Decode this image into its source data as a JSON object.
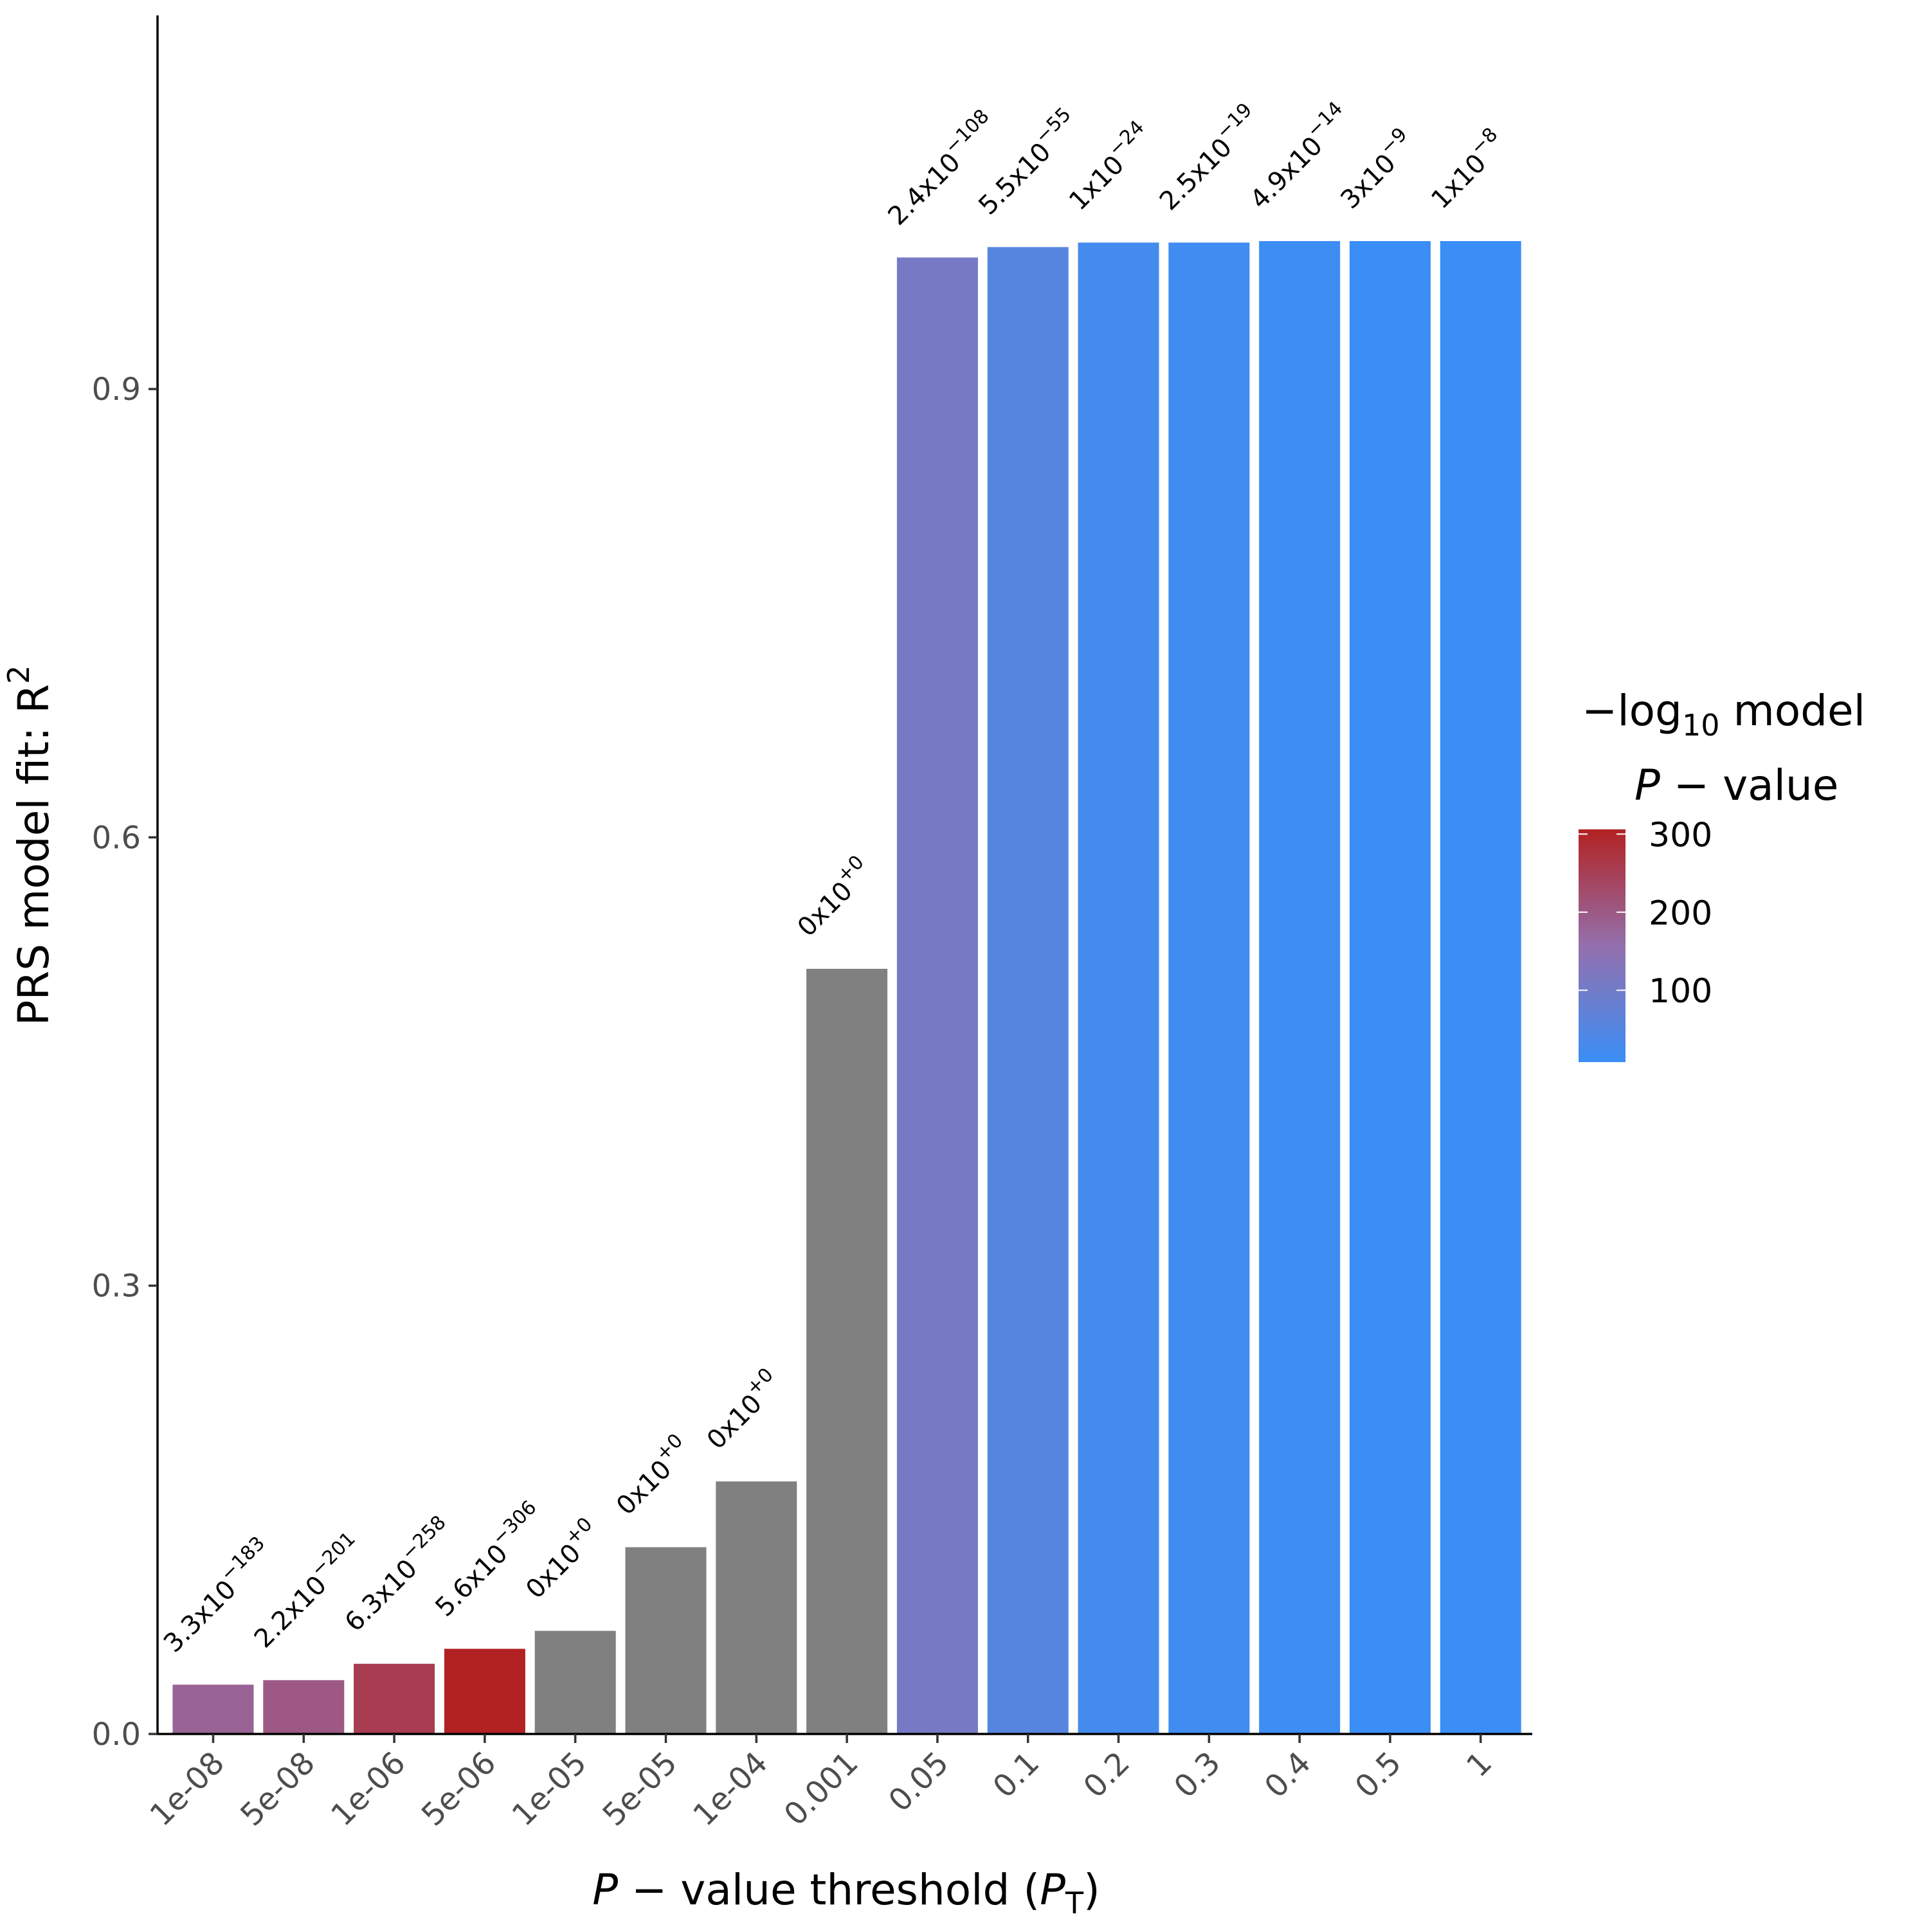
{
  "chart_data": {
    "type": "bar",
    "categories": [
      "1e-08",
      "5e-08",
      "1e-06",
      "5e-06",
      "1e-05",
      "5e-05",
      "1e-04",
      "0.001",
      "0.05",
      "0.1",
      "0.2",
      "0.3",
      "0.4",
      "0.5",
      "1"
    ],
    "values": [
      0.033,
      0.036,
      0.047,
      0.057,
      0.069,
      0.125,
      0.169,
      0.512,
      0.988,
      0.995,
      0.998,
      0.998,
      0.999,
      0.999,
      0.999
    ],
    "neg_log10_p": [
      182.5,
      200.7,
      257.2,
      305.3,
      null,
      null,
      null,
      null,
      107.6,
      54.3,
      24,
      18.6,
      13.3,
      8.5,
      8
    ],
    "bar_labels": [
      {
        "mantissa": "3.3x10",
        "exp": "−183"
      },
      {
        "mantissa": "2.2x10",
        "exp": "−201"
      },
      {
        "mantissa": "6.3x10",
        "exp": "−258"
      },
      {
        "mantissa": "5.6x10",
        "exp": "−306"
      },
      {
        "mantissa": "0x10",
        "exp": "+0"
      },
      {
        "mantissa": "0x10",
        "exp": "+0"
      },
      {
        "mantissa": "0x10",
        "exp": "+0"
      },
      {
        "mantissa": "0x10",
        "exp": "+0"
      },
      {
        "mantissa": "2.4x10",
        "exp": "−108"
      },
      {
        "mantissa": "5.5x10",
        "exp": "−55"
      },
      {
        "mantissa": "1x10",
        "exp": "−24"
      },
      {
        "mantissa": "2.5x10",
        "exp": "−19"
      },
      {
        "mantissa": "4.9x10",
        "exp": "−14"
      },
      {
        "mantissa": "3x10",
        "exp": "−9"
      },
      {
        "mantissa": "1x10",
        "exp": "−8"
      }
    ],
    "xlabel": {
      "italic": "P",
      "minus": " − ",
      "text": "value threshold (",
      "sub_main": "P",
      "sub": "T",
      "close": ")"
    },
    "ylabel": {
      "text": "PRS model fit:  R",
      "sup": "2"
    },
    "yticks": [
      0.0,
      0.3,
      0.6,
      0.9
    ],
    "ytick_labels": [
      "0.0",
      "0.3",
      "0.6",
      "0.9"
    ],
    "ylim": [
      0,
      1.15
    ],
    "grid": false,
    "legend": {
      "type": "colorbar",
      "placement": "right",
      "title_line1": {
        "minus": "−",
        "log": "log",
        "sub": "10",
        "rest": " model"
      },
      "title_line2": {
        "italic": "P",
        "rest": " − value"
      },
      "ticks": [
        100,
        200,
        300
      ],
      "tick_labels": [
        "100",
        "200",
        "300"
      ],
      "range": [
        8,
        306
      ],
      "low_color": "#3a8ef6",
      "high_color": "#b22222",
      "na_color": "#808080"
    }
  }
}
